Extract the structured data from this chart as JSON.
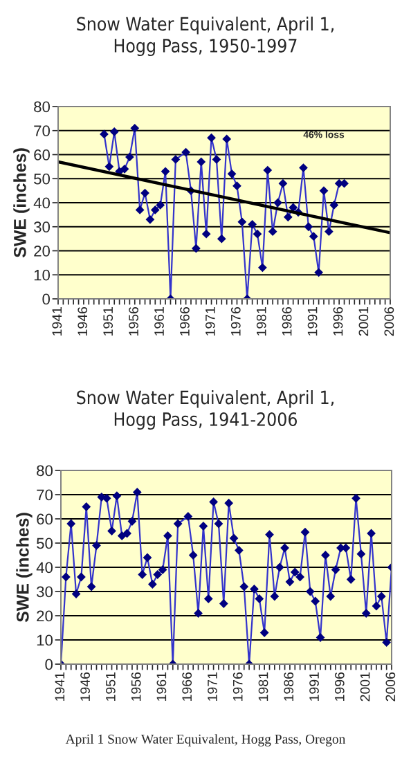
{
  "chart_data": [
    {
      "type": "line",
      "title": "Snow Water Equivalent, April 1,\nHogg Pass, 1950-1997",
      "ylabel": "SWE (inches)",
      "series": [
        {
          "color": "#3333cc",
          "marker": "diamond",
          "x": [
            1950,
            1951,
            1952,
            1953,
            1954,
            1955,
            1956,
            1957,
            1958,
            1959,
            1960,
            1961,
            1962,
            1963,
            1964,
            1966,
            1967,
            1968,
            1969,
            1970,
            1971,
            1972,
            1973,
            1974,
            1975,
            1976,
            1977,
            1978,
            1979,
            1980,
            1981,
            1982,
            1983,
            1984,
            1985,
            1986,
            1987,
            1988,
            1989,
            1990,
            1991,
            1992,
            1993,
            1994,
            1995,
            1996,
            1997
          ],
          "values": [
            68.5,
            55,
            69.5,
            53,
            54,
            59,
            71,
            37,
            44,
            33,
            37,
            39,
            53,
            0,
            58,
            61,
            45,
            21,
            57,
            27,
            67,
            58,
            25,
            66.5,
            52,
            47,
            32,
            0,
            31,
            27,
            13,
            53.5,
            28,
            40,
            48,
            34,
            38,
            36,
            54.5,
            30,
            26,
            11,
            45,
            28,
            39,
            48,
            48
          ]
        },
        {
          "color": "#000000",
          "marker": "none",
          "x": [
            1941,
            2006
          ],
          "values": [
            57,
            27.5
          ]
        }
      ],
      "annotations": [
        "46% loss"
      ],
      "xlim": [
        1941,
        2006
      ],
      "ylim": [
        0,
        80
      ],
      "yticks": [
        0,
        10,
        20,
        30,
        40,
        50,
        60,
        70,
        80
      ],
      "xticks": [
        1941,
        {
          "value": 1942,
          "label": null
        },
        {
          "value": 1943,
          "label": null
        },
        {
          "value": 1944,
          "label": null
        },
        {
          "value": 1945,
          "label": null
        },
        1946,
        {
          "value": 1947,
          "label": null
        },
        {
          "value": 1948,
          "label": null
        },
        {
          "value": 1949,
          "label": null
        },
        {
          "value": 1950,
          "label": null
        },
        1951,
        {
          "value": 1952,
          "label": null
        },
        {
          "value": 1953,
          "label": null
        },
        {
          "value": 1954,
          "label": null
        },
        {
          "value": 1955,
          "label": null
        },
        1956,
        {
          "value": 1957,
          "label": null
        },
        {
          "value": 1958,
          "label": null
        },
        {
          "value": 1959,
          "label": null
        },
        {
          "value": 1960,
          "label": null
        },
        1961,
        {
          "value": 1962,
          "label": null
        },
        {
          "value": 1963,
          "label": null
        },
        {
          "value": 1964,
          "label": null
        },
        {
          "value": 1965,
          "label": null
        },
        1966,
        {
          "value": 1967,
          "label": null
        },
        {
          "value": 1968,
          "label": null
        },
        {
          "value": 1969,
          "label": null
        },
        {
          "value": 1970,
          "label": null
        },
        1971,
        {
          "value": 1972,
          "label": null
        },
        {
          "value": 1973,
          "label": null
        },
        {
          "value": 1974,
          "label": null
        },
        {
          "value": 1975,
          "label": null
        },
        1976,
        {
          "value": 1977,
          "label": null
        },
        {
          "value": 1978,
          "label": null
        },
        {
          "value": 1979,
          "label": null
        },
        {
          "value": 1980,
          "label": null
        },
        1981,
        {
          "value": 1982,
          "label": null
        },
        {
          "value": 1983,
          "label": null
        },
        {
          "value": 1984,
          "label": null
        },
        {
          "value": 1985,
          "label": null
        },
        1986,
        {
          "value": 1987,
          "label": null
        },
        {
          "value": 1988,
          "label": null
        },
        {
          "value": 1989,
          "label": null
        },
        {
          "value": 1990,
          "label": null
        },
        1991,
        {
          "value": 1992,
          "label": null
        },
        {
          "value": 1993,
          "label": null
        },
        {
          "value": 1994,
          "label": null
        },
        {
          "value": 1995,
          "label": null
        },
        1996,
        {
          "value": 1997,
          "label": null
        },
        {
          "value": 1998,
          "label": null
        },
        {
          "value": 1999,
          "label": null
        },
        {
          "value": 2000,
          "label": null
        },
        2001,
        {
          "value": 2002,
          "label": null
        },
        {
          "value": 2003,
          "label": null
        },
        {
          "value": 2004,
          "label": null
        },
        {
          "value": 2005,
          "label": null
        },
        2006
      ],
      "grid": "y",
      "legend": false
    },
    {
      "type": "line",
      "title": "Snow Water Equivalent, April 1,\nHogg Pass, 1941-2006",
      "ylabel": "SWE (inches)",
      "series": [
        {
          "color": "#3333cc",
          "marker": "diamond",
          "x": [
            1941,
            1942,
            1943,
            1944,
            1945,
            1946,
            1947,
            1948,
            1949,
            1950,
            1951,
            1952,
            1953,
            1954,
            1955,
            1956,
            1957,
            1958,
            1959,
            1960,
            1961,
            1962,
            1963,
            1964,
            1966,
            1967,
            1968,
            1969,
            1970,
            1971,
            1972,
            1973,
            1974,
            1975,
            1976,
            1977,
            1978,
            1979,
            1980,
            1981,
            1982,
            1983,
            1984,
            1985,
            1986,
            1987,
            1988,
            1989,
            1990,
            1991,
            1992,
            1993,
            1994,
            1995,
            1996,
            1997,
            1998,
            1999,
            2000,
            2001,
            2002,
            2003,
            2004,
            2005,
            2006
          ],
          "values": [
            0,
            36,
            58,
            29,
            36,
            65,
            32,
            49,
            69,
            68.5,
            55,
            69.5,
            53,
            54,
            59,
            71,
            37,
            44,
            33,
            37,
            39,
            53,
            0,
            58,
            61,
            45,
            21,
            57,
            27,
            67,
            58,
            25,
            66.5,
            52,
            47,
            32,
            0,
            31,
            27,
            13,
            53.5,
            28,
            40,
            48,
            34,
            38,
            36,
            54.5,
            30,
            26,
            11,
            45,
            28,
            39,
            48,
            48,
            35,
            68.5,
            45.5,
            21,
            54,
            24,
            28,
            9,
            40
          ]
        }
      ],
      "annotations": [
        "April 1 Snow Water Equivalent, Hogg Pass, Oregon"
      ],
      "xlim": [
        1941,
        2006
      ],
      "ylim": [
        0,
        80
      ],
      "yticks": [
        0,
        10,
        20,
        30,
        40,
        50,
        60,
        70,
        80
      ],
      "xticks": [
        1941,
        {
          "value": 1942,
          "label": null
        },
        {
          "value": 1943,
          "label": null
        },
        {
          "value": 1944,
          "label": null
        },
        {
          "value": 1945,
          "label": null
        },
        1946,
        {
          "value": 1947,
          "label": null
        },
        {
          "value": 1948,
          "label": null
        },
        {
          "value": 1949,
          "label": null
        },
        {
          "value": 1950,
          "label": null
        },
        1951,
        {
          "value": 1952,
          "label": null
        },
        {
          "value": 1953,
          "label": null
        },
        {
          "value": 1954,
          "label": null
        },
        {
          "value": 1955,
          "label": null
        },
        1956,
        {
          "value": 1957,
          "label": null
        },
        {
          "value": 1958,
          "label": null
        },
        {
          "value": 1959,
          "label": null
        },
        {
          "value": 1960,
          "label": null
        },
        1961,
        {
          "value": 1962,
          "label": null
        },
        {
          "value": 1963,
          "label": null
        },
        {
          "value": 1964,
          "label": null
        },
        {
          "value": 1965,
          "label": null
        },
        1966,
        {
          "value": 1967,
          "label": null
        },
        {
          "value": 1968,
          "label": null
        },
        {
          "value": 1969,
          "label": null
        },
        {
          "value": 1970,
          "label": null
        },
        1971,
        {
          "value": 1972,
          "label": null
        },
        {
          "value": 1973,
          "label": null
        },
        {
          "value": 1974,
          "label": null
        },
        {
          "value": 1975,
          "label": null
        },
        1976,
        {
          "value": 1977,
          "label": null
        },
        {
          "value": 1978,
          "label": null
        },
        {
          "value": 1979,
          "label": null
        },
        {
          "value": 1980,
          "label": null
        },
        1981,
        {
          "value": 1982,
          "label": null
        },
        {
          "value": 1983,
          "label": null
        },
        {
          "value": 1984,
          "label": null
        },
        {
          "value": 1985,
          "label": null
        },
        1986,
        {
          "value": 1987,
          "label": null
        },
        {
          "value": 1988,
          "label": null
        },
        {
          "value": 1989,
          "label": null
        },
        {
          "value": 1990,
          "label": null
        },
        1991,
        {
          "value": 1992,
          "label": null
        },
        {
          "value": 1993,
          "label": null
        },
        {
          "value": 1994,
          "label": null
        },
        {
          "value": 1995,
          "label": null
        },
        1996,
        {
          "value": 1997,
          "label": null
        },
        {
          "value": 1998,
          "label": null
        },
        {
          "value": 1999,
          "label": null
        },
        {
          "value": 2000,
          "label": null
        },
        2001,
        {
          "value": 2002,
          "label": null
        },
        {
          "value": 2003,
          "label": null
        },
        {
          "value": 2004,
          "label": null
        },
        {
          "value": 2005,
          "label": null
        },
        2006
      ],
      "grid": "y",
      "legend": false
    }
  ]
}
